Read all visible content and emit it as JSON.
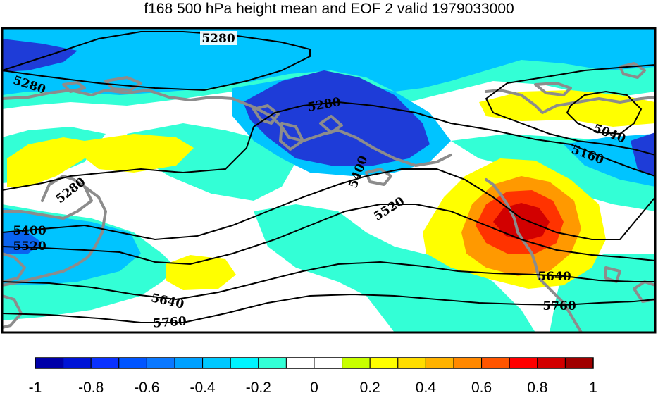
{
  "title": "f168 500 hPa height mean and EOF 2 valid 1979033000",
  "colors": {
    "frame": "#000000",
    "coast": "#8c8c8c",
    "contour": "#000000",
    "deep_blue": "#1e3cd8",
    "blue": "#0a64f0",
    "sky": "#00c4ff",
    "cyan": "#33ffd6",
    "yellow": "#ffff00",
    "orange": "#ff9900",
    "red": "#ff3300",
    "darkred": "#d20000"
  },
  "contour_labels": [
    "5280",
    "5280",
    "5280",
    "5280",
    "5040",
    "5160",
    "5400",
    "5400",
    "5520",
    "5520",
    "5640",
    "5640",
    "5760",
    "5760"
  ],
  "colorbar": {
    "colors": [
      "#0000a8",
      "#0014d6",
      "#0a32ff",
      "#0055ff",
      "#0a78ff",
      "#00a0ff",
      "#00c8ff",
      "#00f5ff",
      "#33ffd6",
      "#ffffff",
      "#ffffff",
      "#c8ff00",
      "#ffff00",
      "#ffdd00",
      "#ffb200",
      "#ff8800",
      "#ff5500",
      "#ff0000",
      "#d20000",
      "#a00000"
    ],
    "tick_labels": [
      "-1",
      "-0.8",
      "-0.6",
      "-0.4",
      "-0.2",
      "0",
      "0.2",
      "0.4",
      "0.6",
      "0.8",
      "1"
    ],
    "range": [
      -1,
      1
    ]
  }
}
